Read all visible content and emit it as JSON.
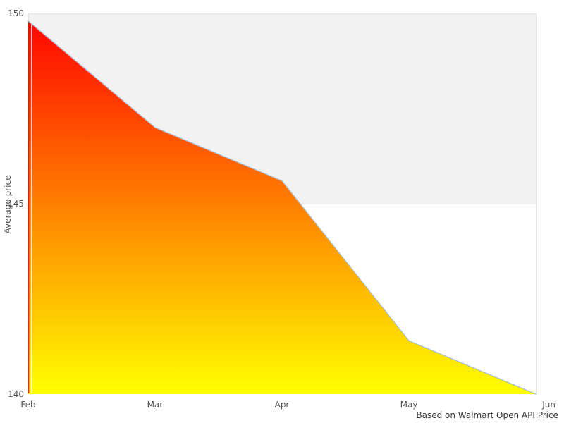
{
  "chart_data": {
    "type": "area",
    "categories": [
      "Feb",
      "Mar",
      "Apr",
      "May",
      "Jun"
    ],
    "values": [
      149.8,
      147.0,
      145.6,
      141.4,
      140.0
    ],
    "series_name": "Average price",
    "title": "",
    "xlabel": "",
    "ylabel": "Average price",
    "ylim": [
      140,
      150
    ],
    "yticks": [
      150,
      145,
      140
    ],
    "caption": "Based on Walmart Open API Price",
    "legend": "none",
    "grid": "horizontal gridlines with alternating band between 145 and 150",
    "colors": {
      "area_gradient_top": "#ff0000",
      "area_gradient_bottom": "#ffff00",
      "line": "#a3bfda",
      "band": "#f2f2f2",
      "gridline": "#e4e4e4",
      "tick_label": "#555555",
      "caption": "#333333"
    }
  }
}
